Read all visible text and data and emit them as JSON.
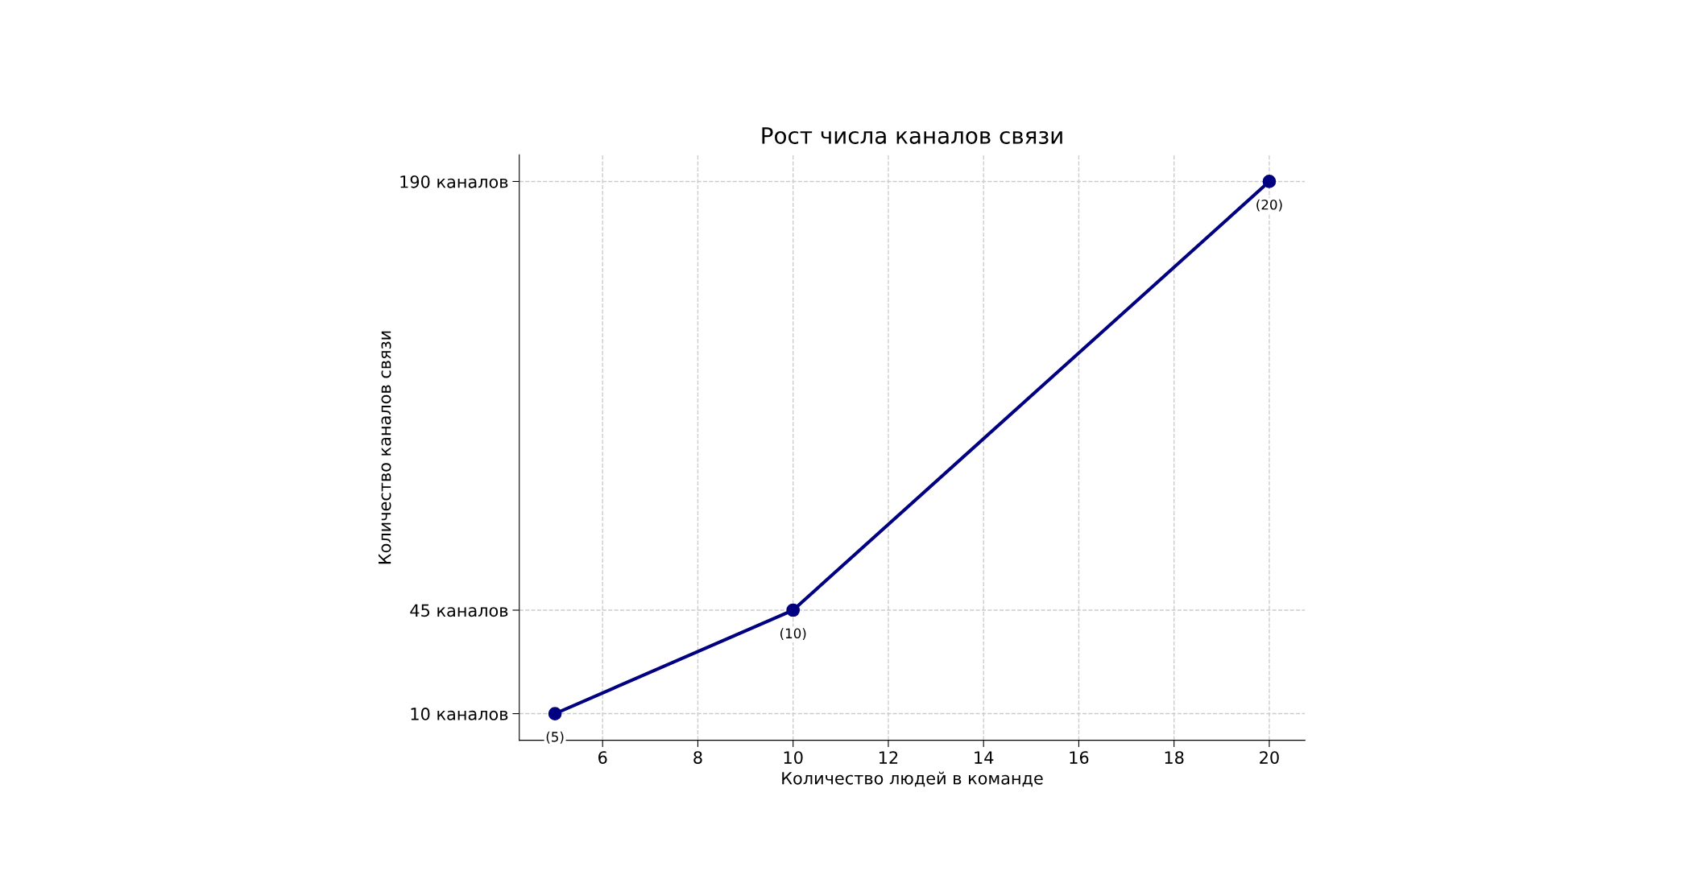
{
  "chart_data": {
    "type": "line",
    "title": "Рост числа каналов связи",
    "xlabel": "Количество людей в команде",
    "ylabel": "Количество каналов связи",
    "x": [
      5,
      10,
      20
    ],
    "series": [
      {
        "color": "#000080",
        "values": [
          10,
          45,
          190
        ]
      }
    ],
    "xlim": [
      4.25,
      20.75
    ],
    "xticks": [
      6,
      8,
      10,
      12,
      14,
      16,
      18,
      20
    ],
    "ylim": [
      1,
      199
    ],
    "yticks": [
      {
        "value": 10,
        "label": "10 каналов"
      },
      {
        "value": 45,
        "label": "45 каналов"
      },
      {
        "value": 190,
        "label": "190 каналов"
      }
    ],
    "annotations": [
      {
        "text": "(5)",
        "x": 5,
        "y": 10
      },
      {
        "text": "(10)",
        "x": 10,
        "y": 45
      },
      {
        "text": "(20)",
        "x": 20,
        "y": 190
      }
    ],
    "grid": true,
    "marker": "circle",
    "line_style": "solid"
  }
}
